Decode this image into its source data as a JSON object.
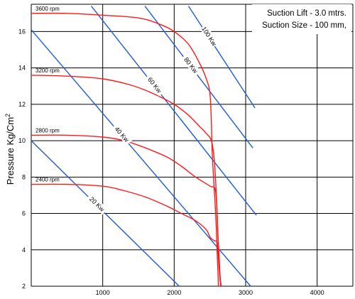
{
  "chart_data": {
    "type": "line",
    "ylabel": "Pressure Kg/Cm",
    "ylabel_sup": "2",
    "xlim": [
      0,
      4500
    ],
    "ylim": [
      2,
      17.5
    ],
    "x_ticks": [
      1000,
      2000,
      3000,
      4000
    ],
    "x_tick_labels": [
      "1000",
      "2000",
      "3000",
      "4000"
    ],
    "y_ticks": [
      2,
      4,
      6,
      8,
      10,
      12,
      14,
      16
    ],
    "y_tick_labels": [
      "2",
      "4",
      "6",
      "8",
      "10",
      "12",
      "14",
      "16"
    ],
    "grid": true,
    "annotation": [
      "Suction Lift - 3.0 mtrs.",
      "Suction Size - 100 mm,"
    ],
    "colors": {
      "rpm_curves": "#ff1a1a",
      "power_lines": "#1e5bd6",
      "grid": "#000000"
    },
    "rpm_series": [
      {
        "name": "3600 rpm",
        "x": [
          0,
          500,
          1000,
          1500,
          1800,
          2000,
          2200,
          2350,
          2450,
          2500,
          2520,
          2530,
          2550,
          2580,
          2600,
          2620
        ],
        "y": [
          17.0,
          17.0,
          16.9,
          16.75,
          16.4,
          16.0,
          15.3,
          14.3,
          13.4,
          12.6,
          11.0,
          9.5,
          8.0,
          6.0,
          4.0,
          2.0
        ]
      },
      {
        "name": "3200 rpm",
        "x": [
          0,
          500,
          1000,
          1400,
          1700,
          2000,
          2200,
          2350,
          2450,
          2520,
          2560,
          2590,
          2610,
          2630,
          2650
        ],
        "y": [
          13.6,
          13.55,
          13.4,
          13.05,
          12.6,
          12.0,
          11.4,
          10.8,
          10.4,
          10.0,
          9.0,
          7.0,
          5.0,
          3.5,
          2.0
        ]
      },
      {
        "name": "2800 rpm",
        "x": [
          0,
          500,
          1000,
          1300,
          1600,
          1900,
          2100,
          2300,
          2500,
          2580,
          2610,
          2630,
          2650
        ],
        "y": [
          10.3,
          10.3,
          10.2,
          10.0,
          9.6,
          9.1,
          8.6,
          8.0,
          7.5,
          7.2,
          5.0,
          3.0,
          2.0
        ]
      },
      {
        "name": "2400 rpm",
        "x": [
          0,
          500,
          1000,
          1300,
          1600,
          1900,
          2100,
          2300,
          2450,
          2500,
          2560,
          2600,
          2620,
          2640,
          2660
        ],
        "y": [
          7.6,
          7.6,
          7.5,
          7.25,
          6.9,
          6.4,
          6.0,
          5.6,
          5.1,
          4.7,
          4.5,
          4.4,
          3.5,
          2.5,
          2.0
        ]
      }
    ],
    "power_series": [
      {
        "name": "20 Kw",
        "x": [
          0,
          2070
        ],
        "y": [
          10.0,
          2.0
        ]
      },
      {
        "name": "40 Kw",
        "x": [
          0,
          3070
        ],
        "y": [
          16.1,
          2.0
        ]
      },
      {
        "name": "60 Kw",
        "x": [
          840,
          3150
        ],
        "y": [
          17.4,
          5.9
        ]
      },
      {
        "name": "80 Kw",
        "x": [
          1590,
          3100
        ],
        "y": [
          17.4,
          9.6
        ]
      },
      {
        "name": "100 Kw",
        "x": [
          2200,
          3130
        ],
        "y": [
          17.4,
          11.8
        ]
      }
    ]
  }
}
